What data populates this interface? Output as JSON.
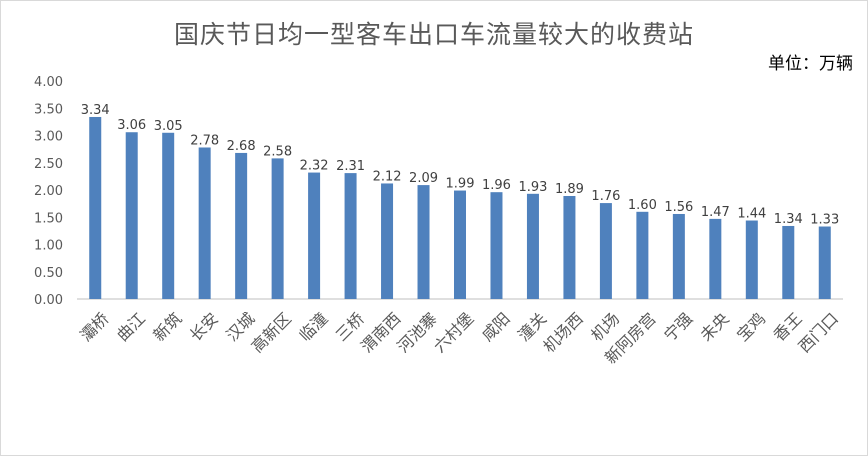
{
  "chart_data": {
    "type": "bar",
    "title": "国庆节日均一型客车出口车流量较大的收费站",
    "unit": "单位：万辆",
    "categories": [
      "灞桥",
      "曲江",
      "新筑",
      "长安",
      "汉城",
      "高新区",
      "临潼",
      "三桥",
      "渭南西",
      "河池寨",
      "六村堡",
      "咸阳",
      "潼关",
      "机场西",
      "机场",
      "新阿房宫",
      "宁强",
      "未央",
      "宝鸡",
      "香王",
      "西门口"
    ],
    "values": [
      3.34,
      3.06,
      3.05,
      2.78,
      2.68,
      2.58,
      2.32,
      2.31,
      2.12,
      2.09,
      1.99,
      1.96,
      1.93,
      1.89,
      1.76,
      1.6,
      1.56,
      1.47,
      1.44,
      1.34,
      1.33
    ],
    "value_labels": [
      "3.34",
      "3.06",
      "3.05",
      "2.78",
      "2.68",
      "2.58",
      "2.32",
      "2.31",
      "2.12",
      "2.09",
      "1.99",
      "1.96",
      "1.93",
      "1.89",
      "1.76",
      "1.60",
      "1.56",
      "1.47",
      "1.44",
      "1.34",
      "1.33"
    ],
    "yticks": [
      "0.00",
      "0.50",
      "1.00",
      "1.50",
      "2.00",
      "2.50",
      "3.00",
      "3.50",
      "4.00"
    ],
    "ylim": [
      0,
      4
    ],
    "grid": false,
    "legend": "none",
    "colors": {
      "bar": "#4f81bd",
      "axis": "#bfbfbf"
    }
  }
}
